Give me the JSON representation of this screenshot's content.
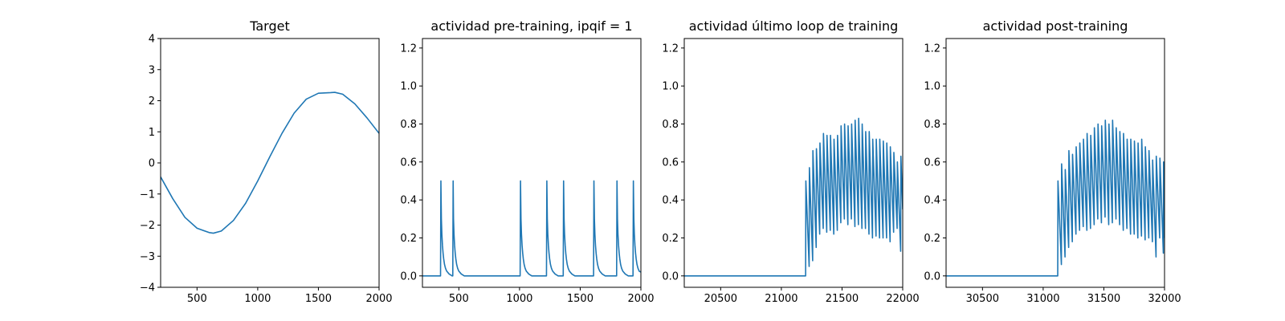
{
  "chart_data": [
    {
      "type": "line",
      "title": "Target",
      "xlabel": "",
      "ylabel": "",
      "xlim": [
        200,
        2000
      ],
      "ylim": [
        -4,
        4
      ],
      "xticks": [
        500,
        1000,
        1500,
        2000
      ],
      "xtick_labels": [
        "500",
        "1000",
        "1500",
        "2000"
      ],
      "yticks": [
        -4,
        -3,
        -2,
        -1,
        0,
        1,
        2,
        3,
        4
      ],
      "ytick_labels": [
        "−4",
        "−3",
        "−2",
        "−1",
        "0",
        "1",
        "2",
        "3",
        "4"
      ],
      "grid": false,
      "line_color": "#1f77b4",
      "x": [
        200,
        300,
        400,
        500,
        600,
        635,
        700,
        800,
        900,
        1000,
        1100,
        1200,
        1300,
        1400,
        1500,
        1600,
        1635,
        1700,
        1800,
        1900,
        2000
      ],
      "y": [
        -0.45,
        -1.15,
        -1.75,
        -2.1,
        -2.24,
        -2.26,
        -2.19,
        -1.85,
        -1.3,
        -0.58,
        0.2,
        0.95,
        1.6,
        2.05,
        2.24,
        2.26,
        2.27,
        2.21,
        1.9,
        1.45,
        0.95
      ]
    },
    {
      "type": "line",
      "title": "actividad pre-training, ipqif = 1",
      "xlabel": "",
      "ylabel": "",
      "xlim": [
        200,
        2000
      ],
      "ylim": [
        -0.06,
        1.25
      ],
      "xticks": [
        500,
        1000,
        1500,
        2000
      ],
      "xtick_labels": [
        "500",
        "1000",
        "1500",
        "2000"
      ],
      "yticks": [
        0.0,
        0.2,
        0.4,
        0.6,
        0.8,
        1.0,
        1.2
      ],
      "ytick_labels": [
        "0.0",
        "0.2",
        "0.4",
        "0.6",
        "0.8",
        "1.0",
        "1.2"
      ],
      "grid": false,
      "line_color": "#1f77b4",
      "x": [
        200,
        349,
        352,
        356,
        360,
        365,
        370,
        375,
        382,
        390,
        400,
        420,
        445,
        450,
        453,
        456,
        460,
        465,
        470,
        475,
        482,
        490,
        500,
        520,
        545,
        1005,
        1008,
        1012,
        1016,
        1021,
        1026,
        1031,
        1038,
        1046,
        1056,
        1076,
        1101,
        1222,
        1225,
        1229,
        1233,
        1238,
        1243,
        1248,
        1255,
        1263,
        1273,
        1293,
        1318,
        1360,
        1363,
        1367,
        1371,
        1376,
        1381,
        1386,
        1393,
        1401,
        1411,
        1431,
        1456,
        1610,
        1613,
        1617,
        1621,
        1626,
        1631,
        1636,
        1643,
        1651,
        1661,
        1681,
        1706,
        1800,
        1803,
        1807,
        1811,
        1816,
        1821,
        1826,
        1833,
        1841,
        1851,
        1871,
        1896,
        1935,
        1938,
        1942,
        1946,
        1951,
        1956,
        1961,
        1968,
        1976,
        1986,
        2000
      ],
      "y": [
        0,
        0,
        0.5,
        0.3,
        0.22,
        0.16,
        0.12,
        0.09,
        0.06,
        0.04,
        0.025,
        0.01,
        0,
        0,
        0.5,
        0.3,
        0.22,
        0.16,
        0.12,
        0.09,
        0.06,
        0.04,
        0.025,
        0.01,
        0,
        0,
        0.5,
        0.3,
        0.22,
        0.16,
        0.12,
        0.09,
        0.06,
        0.04,
        0.025,
        0.01,
        0,
        0,
        0.5,
        0.3,
        0.22,
        0.16,
        0.12,
        0.09,
        0.06,
        0.04,
        0.025,
        0.01,
        0,
        0,
        0.5,
        0.3,
        0.22,
        0.16,
        0.12,
        0.09,
        0.06,
        0.04,
        0.025,
        0.01,
        0,
        0,
        0.5,
        0.3,
        0.22,
        0.16,
        0.12,
        0.09,
        0.06,
        0.04,
        0.025,
        0.01,
        0,
        0,
        0.5,
        0.3,
        0.22,
        0.16,
        0.12,
        0.09,
        0.06,
        0.04,
        0.025,
        0.01,
        0,
        0,
        0.5,
        0.3,
        0.22,
        0.16,
        0.12,
        0.09,
        0.06,
        0.04,
        0.025,
        0.02
      ]
    },
    {
      "type": "line",
      "title": "actividad último loop de training",
      "xlabel": "",
      "ylabel": "",
      "xlim": [
        20200,
        22000
      ],
      "ylim": [
        -0.06,
        1.25
      ],
      "xticks": [
        20500,
        21000,
        21500,
        22000
      ],
      "xtick_labels": [
        "20500",
        "21000",
        "21500",
        "22000"
      ],
      "yticks": [
        0.0,
        0.2,
        0.4,
        0.6,
        0.8,
        1.0,
        1.2
      ],
      "ytick_labels": [
        "0.0",
        "0.2",
        "0.4",
        "0.6",
        "0.8",
        "1.0",
        "1.2"
      ],
      "grid": false,
      "line_color": "#1f77b4",
      "x": [
        20200,
        21200,
        21202,
        21229,
        21231,
        21258,
        21260,
        21287,
        21289,
        21316,
        21318,
        21345,
        21347,
        21374,
        21376,
        21403,
        21405,
        21432,
        21434,
        21461,
        21463,
        21490,
        21492,
        21519,
        21521,
        21548,
        21550,
        21577,
        21579,
        21606,
        21608,
        21635,
        21637,
        21664,
        21666,
        21693,
        21695,
        21722,
        21724,
        21751,
        21753,
        21780,
        21782,
        21809,
        21811,
        21838,
        21840,
        21867,
        21869,
        21896,
        21898,
        21925,
        21927,
        21954,
        21956,
        21983,
        21985,
        22000
      ],
      "y": [
        0,
        0,
        0.5,
        0.05,
        0.57,
        0.08,
        0.66,
        0.15,
        0.67,
        0.22,
        0.7,
        0.25,
        0.75,
        0.23,
        0.74,
        0.24,
        0.74,
        0.22,
        0.72,
        0.24,
        0.74,
        0.28,
        0.79,
        0.3,
        0.8,
        0.27,
        0.79,
        0.3,
        0.8,
        0.26,
        0.82,
        0.27,
        0.83,
        0.25,
        0.8,
        0.25,
        0.76,
        0.22,
        0.76,
        0.2,
        0.72,
        0.21,
        0.72,
        0.2,
        0.72,
        0.2,
        0.71,
        0.2,
        0.7,
        0.18,
        0.68,
        0.23,
        0.65,
        0.25,
        0.6,
        0.13,
        0.63,
        0.35
      ]
    },
    {
      "type": "line",
      "title": "actividad post-training",
      "xlabel": "",
      "ylabel": "",
      "xlim": [
        30200,
        32000
      ],
      "ylim": [
        -0.06,
        1.25
      ],
      "xticks": [
        30500,
        31000,
        31500,
        32000
      ],
      "xtick_labels": [
        "30500",
        "31000",
        "31500",
        "32000"
      ],
      "yticks": [
        0.0,
        0.2,
        0.4,
        0.6,
        0.8,
        1.0,
        1.2
      ],
      "ytick_labels": [
        "0.0",
        "0.2",
        "0.4",
        "0.6",
        "0.8",
        "1.0",
        "1.2"
      ],
      "grid": false,
      "line_color": "#1f77b4",
      "x": [
        30200,
        31120,
        31122,
        31150,
        31152,
        31180,
        31182,
        31210,
        31212,
        31240,
        31242,
        31270,
        31272,
        31300,
        31302,
        31330,
        31332,
        31360,
        31362,
        31390,
        31392,
        31420,
        31422,
        31450,
        31452,
        31480,
        31482,
        31510,
        31512,
        31540,
        31542,
        31570,
        31572,
        31600,
        31602,
        31630,
        31632,
        31660,
        31662,
        31690,
        31692,
        31720,
        31722,
        31750,
        31752,
        31780,
        31782,
        31810,
        31812,
        31840,
        31842,
        31870,
        31872,
        31900,
        31902,
        31930,
        31932,
        31960,
        31962,
        31990,
        31992,
        32000
      ],
      "y": [
        0,
        0,
        0.5,
        0.06,
        0.59,
        0.1,
        0.56,
        0.15,
        0.66,
        0.18,
        0.64,
        0.22,
        0.68,
        0.24,
        0.7,
        0.26,
        0.72,
        0.24,
        0.75,
        0.25,
        0.74,
        0.27,
        0.78,
        0.3,
        0.8,
        0.28,
        0.79,
        0.31,
        0.82,
        0.27,
        0.8,
        0.28,
        0.82,
        0.3,
        0.78,
        0.27,
        0.76,
        0.24,
        0.75,
        0.25,
        0.72,
        0.22,
        0.72,
        0.22,
        0.71,
        0.2,
        0.7,
        0.21,
        0.72,
        0.19,
        0.68,
        0.2,
        0.66,
        0.18,
        0.61,
        0.1,
        0.63,
        0.2,
        0.62,
        0.12,
        0.6,
        0.2
      ]
    }
  ]
}
